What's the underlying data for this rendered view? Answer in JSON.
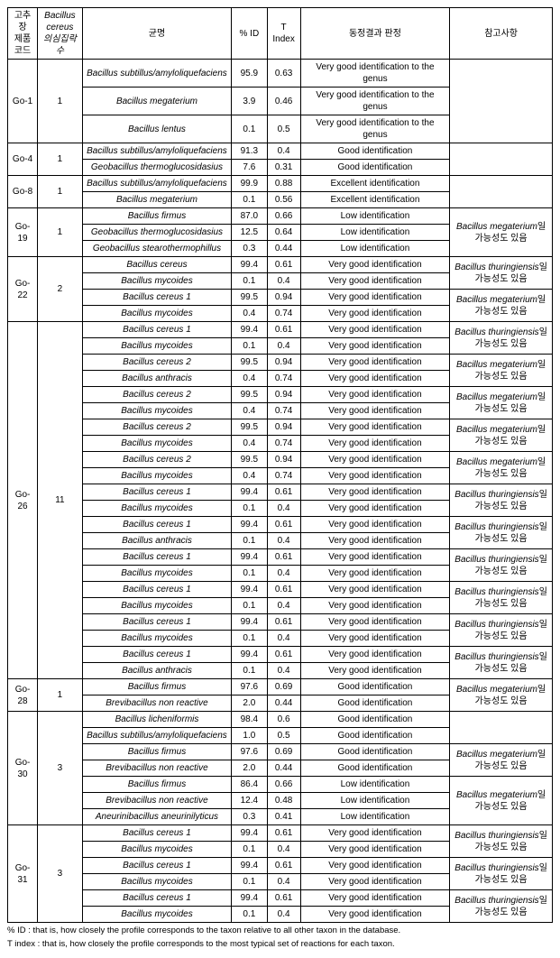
{
  "headers": {
    "code": "고추장\n제품\n코드",
    "suspect": "Bacillus\ncereus\n의심집락 수",
    "name": "균명",
    "pid": "% ID",
    "tindex": "T\nIndex",
    "result": "동정결과 판정",
    "remark": "참고사항"
  },
  "footnotes": {
    "f1": "% ID : that is, how closely the profile corresponds to the taxon relative to all other taxon in the database.",
    "f2": "T index : that is, how closely the profile corresponds to the most typical set of reactions for each taxon."
  },
  "groups": [
    {
      "code": "Go-1",
      "count": "1",
      "rows": [
        {
          "n": "Bacillus subtillus/amyloliquefaciens",
          "p": "95.9",
          "t": "0.63",
          "r": "Very good identification to the genus",
          "rm": "",
          "rmspan": 3
        },
        {
          "n": "Bacillus megaterium",
          "p": "3.9",
          "t": "0.46",
          "r": "Very good identification to the genus"
        },
        {
          "n": "Bacillus lentus",
          "p": "0.1",
          "t": "0.5",
          "r": "Very good identification to the genus"
        }
      ]
    },
    {
      "code": "Go-4",
      "count": "1",
      "rows": [
        {
          "n": "Bacillus subtillus/amyloliquefaciens",
          "p": "91.3",
          "t": "0.4",
          "r": "Good identification",
          "rm": "",
          "rmspan": 2
        },
        {
          "n": "Geobacillus thermoglucosidasius",
          "p": "7.6",
          "t": "0.31",
          "r": "Good identification"
        }
      ]
    },
    {
      "code": "Go-8",
      "count": "1",
      "rows": [
        {
          "n": "Bacillus subtillus/amyloliquefaciens",
          "p": "99.9",
          "t": "0.88",
          "r": "Excellent identification",
          "rm": "",
          "rmspan": 2
        },
        {
          "n": "Bacillus megaterium",
          "p": "0.1",
          "t": "0.56",
          "r": "Excellent identification"
        }
      ]
    },
    {
      "code": "Go-19",
      "count": "1",
      "rows": [
        {
          "n": "Bacillus firmus",
          "p": "87.0",
          "t": "0.66",
          "r": "Low identification",
          "rm": "Bacillus megaterium일 가능성도 있음",
          "rmspan": 3
        },
        {
          "n": "Geobacillus thermoglucosidasius",
          "p": "12.5",
          "t": "0.64",
          "r": "Low identification"
        },
        {
          "n": "Geobacillus stearothermophillus",
          "p": "0.3",
          "t": "0.44",
          "r": "Low identification"
        }
      ]
    },
    {
      "code": "Go-22",
      "count": "2",
      "subgroups": [
        {
          "rows": [
            {
              "n": "Bacillus cereus",
              "p": "99.4",
              "t": "0.61",
              "r": "Very good identification",
              "rm": "Bacillus thuringiensis일 가능성도 있음",
              "rmspan": 2
            },
            {
              "n": "Bacillus mycoides",
              "p": "0.1",
              "t": "0.4",
              "r": "Very good identification"
            }
          ]
        },
        {
          "rows": [
            {
              "n": "Bacillus cereus 1",
              "p": "99.5",
              "t": "0.94",
              "r": "Very good identification",
              "rm": "Bacillus megaterium일 가능성도 있음",
              "rmspan": 2
            },
            {
              "n": "Bacillus mycoides",
              "p": "0.4",
              "t": "0.74",
              "r": "Very good identification"
            }
          ]
        }
      ]
    },
    {
      "code": "Go-26",
      "count": "11",
      "subgroups": [
        {
          "rows": [
            {
              "n": "Bacillus cereus 1",
              "p": "99.4",
              "t": "0.61",
              "r": "Very good identification",
              "rm": "Bacillus thuringiensis일 가능성도 있음",
              "rmspan": 2
            },
            {
              "n": "Bacillus mycoides",
              "p": "0.1",
              "t": "0.4",
              "r": "Very good identification"
            }
          ]
        },
        {
          "rows": [
            {
              "n": "Bacillus cereus 2",
              "p": "99.5",
              "t": "0.94",
              "r": "Very good identification",
              "rm": "Bacillus megaterium일 가능성도 있음",
              "rmspan": 2
            },
            {
              "n": "Bacillus anthracis",
              "p": "0.4",
              "t": "0.74",
              "r": "Very good identification"
            }
          ]
        },
        {
          "rows": [
            {
              "n": "Bacillus cereus 2",
              "p": "99.5",
              "t": "0.94",
              "r": "Very good identification",
              "rm": "Bacillus megaterium일 가능성도 있음",
              "rmspan": 2
            },
            {
              "n": "Bacillus mycoides",
              "p": "0.4",
              "t": "0.74",
              "r": "Very good identification"
            }
          ]
        },
        {
          "rows": [
            {
              "n": "Bacillus cereus 2",
              "p": "99.5",
              "t": "0.94",
              "r": "Very good identification",
              "rm": "Bacillus megaterium일 가능성도 있음",
              "rmspan": 2
            },
            {
              "n": "Bacillus mycoides",
              "p": "0.4",
              "t": "0.74",
              "r": "Very good identification"
            }
          ]
        },
        {
          "rows": [
            {
              "n": "Bacillus cereus 2",
              "p": "99.5",
              "t": "0.94",
              "r": "Very good identification",
              "rm": "Bacillus megaterium일 가능성도 있음",
              "rmspan": 2
            },
            {
              "n": "Bacillus mycoides",
              "p": "0.4",
              "t": "0.74",
              "r": "Very good identification"
            }
          ]
        },
        {
          "rows": [
            {
              "n": "Bacillus cereus 1",
              "p": "99.4",
              "t": "0.61",
              "r": "Very good identification",
              "rm": "Bacillus thuringiensis일 가능성도 있음",
              "rmspan": 2
            },
            {
              "n": "Bacillus mycoides",
              "p": "0.1",
              "t": "0.4",
              "r": "Very good identification"
            }
          ]
        },
        {
          "rows": [
            {
              "n": "Bacillus cereus 1",
              "p": "99.4",
              "t": "0.61",
              "r": "Very good identification",
              "rm": "Bacillus thuringiensis일 가능성도 있음",
              "rmspan": 2
            },
            {
              "n": "Bacillus anthracis",
              "p": "0.1",
              "t": "0.4",
              "r": "Very good identification"
            }
          ]
        },
        {
          "rows": [
            {
              "n": "Bacillus cereus 1",
              "p": "99.4",
              "t": "0.61",
              "r": "Very good identification",
              "rm": "Bacillus thuringiensis일 가능성도 있음",
              "rmspan": 2
            },
            {
              "n": "Bacillus mycoides",
              "p": "0.1",
              "t": "0.4",
              "r": "Very good identification"
            }
          ]
        },
        {
          "rows": [
            {
              "n": "Bacillus cereus 1",
              "p": "99.4",
              "t": "0.61",
              "r": "Very good identification",
              "rm": "Bacillus thuringiensis일 가능성도 있음",
              "rmspan": 2
            },
            {
              "n": "Bacillus mycoides",
              "p": "0.1",
              "t": "0.4",
              "r": "Very good identification"
            }
          ]
        },
        {
          "rows": [
            {
              "n": "Bacillus cereus 1",
              "p": "99.4",
              "t": "0.61",
              "r": "Very good identification",
              "rm": "Bacillus thuringiensis일 가능성도 있음",
              "rmspan": 2
            },
            {
              "n": "Bacillus mycoides",
              "p": "0.1",
              "t": "0.4",
              "r": "Very good identification"
            }
          ]
        },
        {
          "rows": [
            {
              "n": "Bacillus cereus 1",
              "p": "99.4",
              "t": "0.61",
              "r": "Very good identification",
              "rm": "Bacillus thuringiensis일 가능성도 있음",
              "rmspan": 2
            },
            {
              "n": "Bacillus anthracis",
              "p": "0.1",
              "t": "0.4",
              "r": "Very good identification"
            }
          ]
        }
      ]
    },
    {
      "code": "Go-28",
      "count": "1",
      "rows": [
        {
          "n": "Bacillus firmus",
          "p": "97.6",
          "t": "0.69",
          "r": "Good identification",
          "rm": "Bacillus megaterium일 가능성도 있음",
          "rmspan": 2
        },
        {
          "n": "Brevibacillus non reactive",
          "p": "2.0",
          "t": "0.44",
          "r": "Good identification"
        }
      ]
    },
    {
      "code": "Go-30",
      "count": "3",
      "subgroups": [
        {
          "rows": [
            {
              "n": "Bacillus licheniformis",
              "p": "98.4",
              "t": "0.6",
              "r": "Good identification",
              "rm": "",
              "rmspan": 2
            },
            {
              "n": "Bacillus subtillus/amyloliquefaciens",
              "p": "1.0",
              "t": "0.5",
              "r": "Good identification"
            }
          ]
        },
        {
          "rows": [
            {
              "n": "Bacillus firmus",
              "p": "97.6",
              "t": "0.69",
              "r": "Good identification",
              "rm": "Bacillus megaterium일 가능성도 있음",
              "rmspan": 2
            },
            {
              "n": "Brevibacillus non reactive",
              "p": "2.0",
              "t": "0.44",
              "r": "Good identification"
            }
          ]
        },
        {
          "rows": [
            {
              "n": "Bacillus firmus",
              "p": "86.4",
              "t": "0.66",
              "r": "Low identification",
              "rm": "Bacillus megaterium일 가능성도 있음",
              "rmspan": 3
            },
            {
              "n": "Brevibacillus non reactive",
              "p": "12.4",
              "t": "0.48",
              "r": "Low identification"
            },
            {
              "n": "Aneurinibacillus aneurinilyticus",
              "p": "0.3",
              "t": "0.41",
              "r": "Low identification"
            }
          ]
        }
      ]
    },
    {
      "code": "Go-31",
      "count": "3",
      "subgroups": [
        {
          "rows": [
            {
              "n": "Bacillus cereus 1",
              "p": "99.4",
              "t": "0.61",
              "r": "Very good identification",
              "rm": "Bacillus thuringiensis일 가능성도 있음",
              "rmspan": 2
            },
            {
              "n": "Bacillus mycoides",
              "p": "0.1",
              "t": "0.4",
              "r": "Very good identification"
            }
          ]
        },
        {
          "rows": [
            {
              "n": "Bacillus cereus 1",
              "p": "99.4",
              "t": "0.61",
              "r": "Very good identification",
              "rm": "Bacillus thuringiensis일 가능성도 있음",
              "rmspan": 2
            },
            {
              "n": "Bacillus mycoides",
              "p": "0.1",
              "t": "0.4",
              "r": "Very good identification"
            }
          ]
        },
        {
          "rows": [
            {
              "n": "Bacillus cereus 1",
              "p": "99.4",
              "t": "0.61",
              "r": "Very good identification",
              "rm": "Bacillus thuringiensis일 가능성도 있음",
              "rmspan": 2
            },
            {
              "n": "Bacillus mycoides",
              "p": "0.1",
              "t": "0.4",
              "r": "Very good identification"
            }
          ]
        }
      ]
    }
  ]
}
